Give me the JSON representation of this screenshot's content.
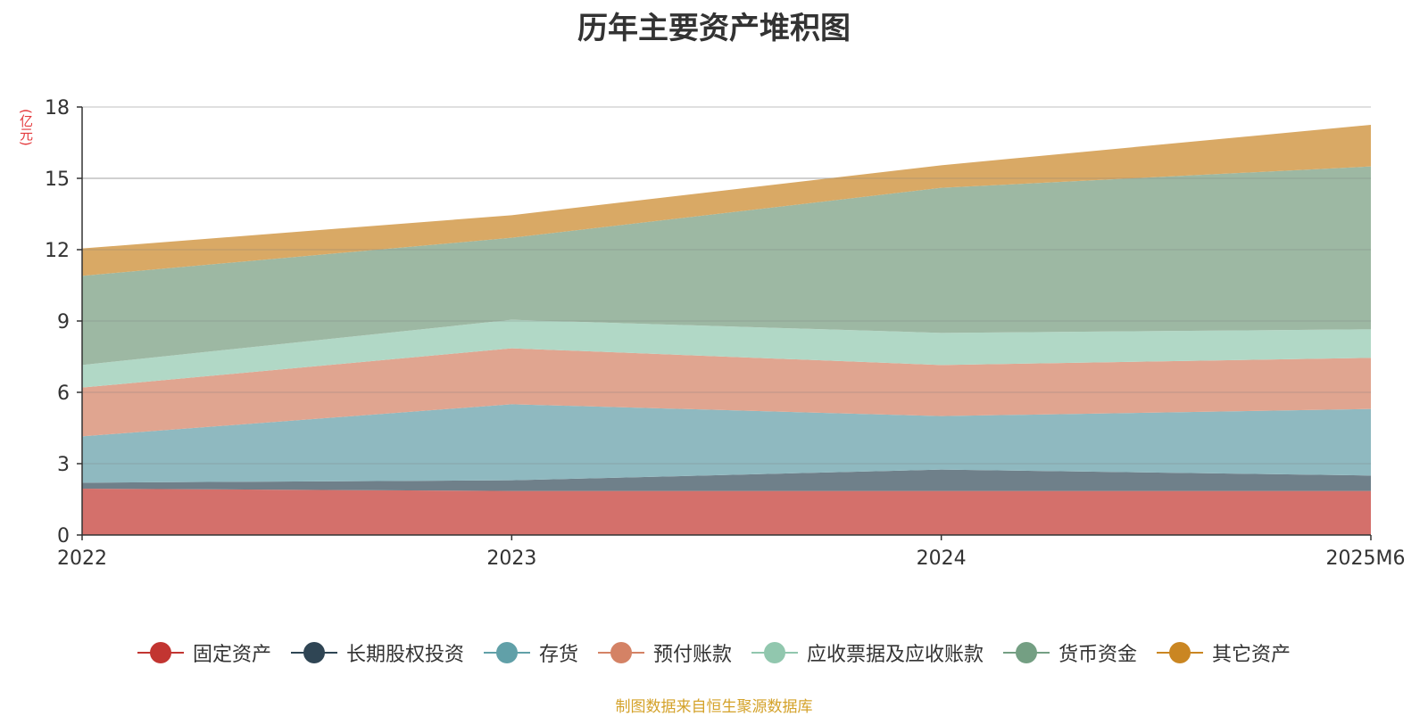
{
  "chart_data": {
    "type": "area",
    "title": "历年主要资产堆积图",
    "unit": "(亿元)",
    "source": "制图数据来自恒生聚源数据库",
    "categories": [
      "2022",
      "2023",
      "2024",
      "2025M6"
    ],
    "ylim": [
      0,
      18
    ],
    "yticks": [
      0,
      3,
      6,
      9,
      12,
      15,
      18
    ],
    "stacked": true,
    "grid": true,
    "legend_position": "bottom",
    "series": [
      {
        "name": "固定资产",
        "color": "#c23531",
        "fill": "#d4706b",
        "values": [
          1.95,
          1.85,
          1.85,
          1.85
        ]
      },
      {
        "name": "长期股权投资",
        "color": "#2f4554",
        "fill": "#6f808a",
        "values": [
          0.25,
          0.45,
          0.9,
          0.65
        ]
      },
      {
        "name": "存货",
        "color": "#61a0a8",
        "fill": "#8fb9c0",
        "values": [
          1.95,
          3.2,
          2.25,
          2.8
        ]
      },
      {
        "name": "预付账款",
        "color": "#d48265",
        "fill": "#e0a590",
        "values": [
          2.05,
          2.35,
          2.15,
          2.15
        ]
      },
      {
        "name": "应收票据及应收账款",
        "color": "#91c7ae",
        "fill": "#b1d8c6",
        "values": [
          0.95,
          1.2,
          1.35,
          1.2
        ]
      },
      {
        "name": "货币资金",
        "color": "#749f83",
        "fill": "#9db8a3",
        "values": [
          3.75,
          3.45,
          6.1,
          6.85
        ]
      },
      {
        "name": "其它资产",
        "color": "#ca8622",
        "fill": "#d9a965",
        "values": [
          1.15,
          0.95,
          0.95,
          1.75
        ]
      }
    ]
  }
}
